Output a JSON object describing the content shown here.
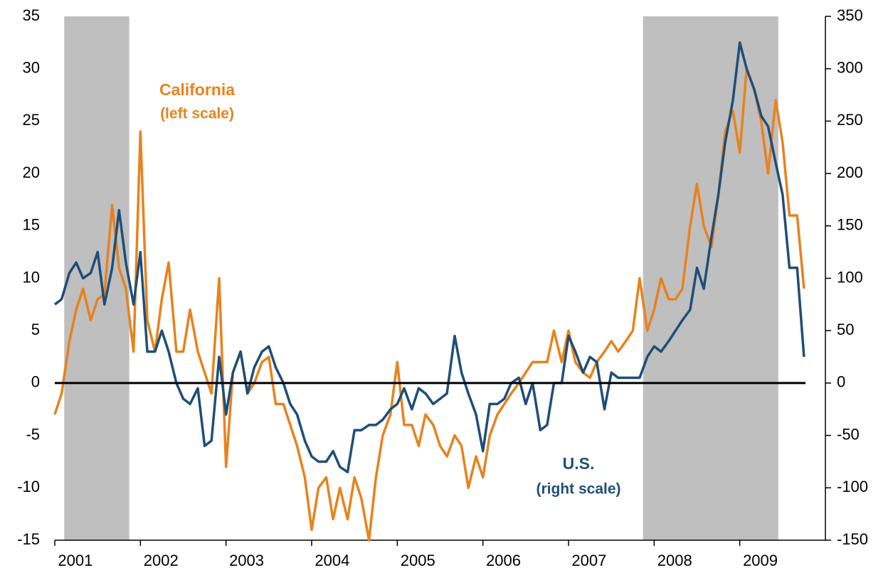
{
  "chart_data": {
    "type": "line",
    "annotations": [
      {
        "text": "California",
        "color": "#E8821E"
      },
      {
        "text": "(left scale)",
        "color": "#E8821E"
      },
      {
        "text": "U.S.",
        "color": "#1F4E79"
      },
      {
        "text": "(right scale)",
        "color": "#1F4E79"
      }
    ],
    "x": [
      2001.0,
      2001.08,
      2001.17,
      2001.25,
      2001.33,
      2001.42,
      2001.5,
      2001.58,
      2001.67,
      2001.75,
      2001.83,
      2001.92,
      2002.0,
      2002.08,
      2002.17,
      2002.25,
      2002.33,
      2002.42,
      2002.5,
      2002.58,
      2002.67,
      2002.75,
      2002.83,
      2002.92,
      2003.0,
      2003.08,
      2003.17,
      2003.25,
      2003.33,
      2003.42,
      2003.5,
      2003.58,
      2003.67,
      2003.75,
      2003.83,
      2003.92,
      2004.0,
      2004.08,
      2004.17,
      2004.25,
      2004.33,
      2004.42,
      2004.5,
      2004.58,
      2004.67,
      2004.75,
      2004.83,
      2004.92,
      2005.0,
      2005.08,
      2005.17,
      2005.25,
      2005.33,
      2005.42,
      2005.5,
      2005.58,
      2005.67,
      2005.75,
      2005.83,
      2005.92,
      2006.0,
      2006.08,
      2006.17,
      2006.25,
      2006.33,
      2006.42,
      2006.5,
      2006.58,
      2006.67,
      2006.75,
      2006.83,
      2006.92,
      2007.0,
      2007.08,
      2007.17,
      2007.25,
      2007.33,
      2007.42,
      2007.5,
      2007.58,
      2007.67,
      2007.75,
      2007.83,
      2007.92,
      2008.0,
      2008.08,
      2008.17,
      2008.25,
      2008.33,
      2008.42,
      2008.5,
      2008.58,
      2008.67,
      2008.75,
      2008.83,
      2008.92,
      2009.0,
      2009.08,
      2009.17,
      2009.25,
      2009.33,
      2009.42,
      2009.5,
      2009.58,
      2009.67,
      2009.75
    ],
    "series": [
      {
        "name": "California",
        "color": "#E8821E",
        "axis": "y",
        "values": [
          -3,
          -1,
          4,
          7,
          9,
          6,
          8,
          8.5,
          17,
          11,
          9,
          3,
          24,
          6,
          3,
          8,
          11.5,
          3,
          3,
          7,
          3,
          1,
          -1,
          10,
          -8,
          1,
          3,
          -1,
          0,
          2,
          2.5,
          -2,
          -2,
          -4,
          -6,
          -9,
          -14,
          -10,
          -9,
          -13,
          -10,
          -13,
          -9,
          -11,
          -15,
          -9,
          -5,
          -3,
          2,
          -4,
          -4,
          -6,
          -3,
          -4,
          -6,
          -7,
          -5,
          -6,
          -10,
          -7,
          -9,
          -5,
          -3,
          -2,
          -1,
          0,
          1,
          2,
          2,
          2,
          5,
          2,
          5,
          2,
          1,
          0.5,
          2,
          3,
          4,
          3,
          4,
          5,
          10,
          5,
          7,
          10,
          8,
          8,
          9,
          15,
          19,
          15,
          13,
          18,
          24,
          26,
          22,
          30,
          28,
          25,
          20,
          27,
          23,
          16,
          16,
          9
        ]
      },
      {
        "name": "U.S.",
        "color": "#1F4E79",
        "axis": "y2",
        "values": [
          75,
          80,
          105,
          115,
          100,
          105,
          125,
          75,
          110,
          165,
          115,
          75,
          125,
          30,
          30,
          50,
          30,
          0,
          -15,
          -20,
          -5,
          -60,
          -55,
          25,
          -30,
          10,
          30,
          -10,
          15,
          30,
          35,
          15,
          0,
          -20,
          -30,
          -55,
          -70,
          -75,
          -75,
          -65,
          -80,
          -85,
          -45,
          -45,
          -40,
          -40,
          -35,
          -25,
          -20,
          -5,
          -25,
          -5,
          -10,
          -20,
          -15,
          -10,
          45,
          10,
          -10,
          -30,
          -65,
          -20,
          -20,
          -15,
          0,
          5,
          -20,
          0,
          -45,
          -40,
          0,
          0,
          45,
          30,
          10,
          25,
          20,
          -25,
          10,
          5,
          5,
          5,
          5,
          25,
          35,
          30,
          40,
          50,
          60,
          70,
          110,
          90,
          140,
          180,
          230,
          270,
          325,
          300,
          280,
          255,
          245,
          210,
          180,
          110,
          110,
          25
        ]
      }
    ],
    "recessions": [
      [
        2001.11,
        2001.87
      ],
      [
        2007.87,
        2009.45
      ]
    ],
    "reference_line": 0,
    "xlim": [
      2001,
      2010
    ],
    "xticks": [
      2001,
      2002,
      2003,
      2004,
      2005,
      2006,
      2007,
      2008,
      2009
    ],
    "ylim": [
      -15,
      35
    ],
    "yticks": [
      -15,
      -10,
      -5,
      0,
      5,
      10,
      15,
      20,
      25,
      30,
      35
    ],
    "y2lim": [
      -150,
      350
    ],
    "y2ticks": [
      -150,
      -100,
      -50,
      0,
      50,
      100,
      150,
      200,
      250,
      300,
      350
    ]
  }
}
